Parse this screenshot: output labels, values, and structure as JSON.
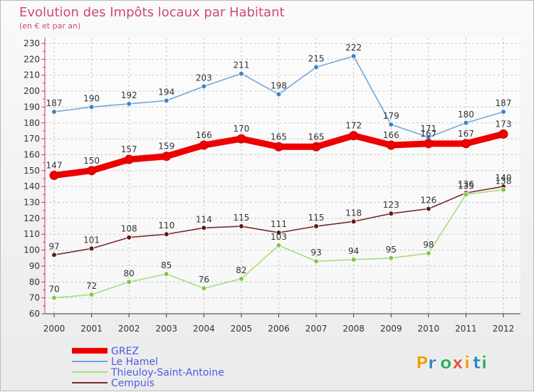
{
  "chart_data": {
    "type": "line",
    "title": "Evolution des Impôts locaux par Habitant",
    "subtitle": "(en € et par an)",
    "xlabel": "",
    "ylabel": "",
    "categories": [
      "2000",
      "2001",
      "2002",
      "2003",
      "2004",
      "2005",
      "2006",
      "2007",
      "2008",
      "2009",
      "2010",
      "2011",
      "2012"
    ],
    "ylim": [
      60,
      230
    ],
    "yticks": [
      60,
      70,
      80,
      90,
      100,
      110,
      120,
      130,
      140,
      150,
      160,
      170,
      180,
      190,
      200,
      210,
      220,
      230
    ],
    "grid": true,
    "legend_position": "bottom-left",
    "series": [
      {
        "name": "GREZ",
        "color": "#ee0000",
        "marker": "#ee0000",
        "values": [
          147,
          150,
          157,
          159,
          166,
          170,
          165,
          165,
          172,
          166,
          167,
          167,
          173
        ]
      },
      {
        "name": "Le Hamel",
        "color": "#6fa8dc",
        "marker": "#3d85c6",
        "values": [
          187,
          190,
          192,
          194,
          203,
          211,
          198,
          215,
          222,
          179,
          171,
          180,
          187
        ]
      },
      {
        "name": "Thieuloy-Saint-Antoine",
        "color": "#a8dd7c",
        "marker": "#7cc94a",
        "values": [
          70,
          72,
          80,
          85,
          76,
          82,
          103,
          93,
          94,
          95,
          98,
          135,
          138
        ]
      },
      {
        "name": "Cempuis",
        "color": "#7a2b2b",
        "marker": "#5e1a1a",
        "values": [
          97,
          101,
          108,
          110,
          114,
          115,
          111,
          115,
          118,
          123,
          126,
          136,
          140
        ]
      }
    ]
  },
  "branding": {
    "logo_text": "Proxiti",
    "logo_colors": [
      "#f39c12",
      "#2e86c1",
      "#27ae60",
      "#e74c3c"
    ]
  }
}
